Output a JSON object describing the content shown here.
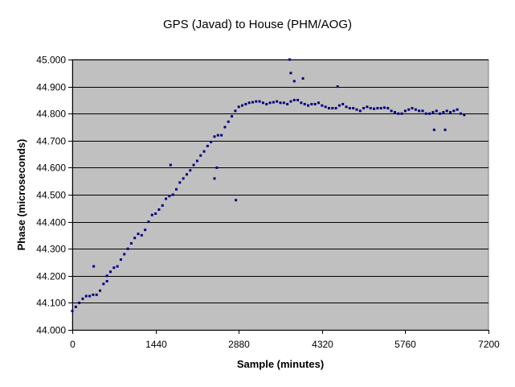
{
  "chart_data": {
    "type": "scatter",
    "title": "GPS (Javad) to House (PHM/AOG)",
    "xlabel": "Sample (minutes)",
    "ylabel": "Phase (microseconds)",
    "xlim": [
      0,
      7200
    ],
    "ylim": [
      44.0,
      45.0
    ],
    "x_ticks": [
      0,
      1440,
      2880,
      4320,
      5760,
      7200
    ],
    "x_tick_labels": [
      "0",
      "1440",
      "2880",
      "4320",
      "5760",
      "7200"
    ],
    "y_ticks": [
      44.0,
      44.1,
      44.2,
      44.3,
      44.4,
      44.5,
      44.6,
      44.7,
      44.8,
      44.9,
      45.0
    ],
    "y_tick_labels": [
      "44.000",
      "44.100",
      "44.200",
      "44.300",
      "44.400",
      "44.500",
      "44.600",
      "44.700",
      "44.800",
      "44.900",
      "45.000"
    ],
    "grid": "horizontal",
    "legend": "none",
    "plot_background": "#c0c0c0",
    "marker_color": "#000080",
    "series": [
      {
        "x": [
          0,
          60,
          120,
          180,
          240,
          300,
          360,
          420,
          480,
          540,
          600,
          660,
          720,
          780,
          840,
          900,
          960,
          1020,
          1080,
          1140,
          1200,
          1260,
          1320,
          1380,
          1440,
          1500,
          1560,
          1620,
          1680,
          1740,
          1800,
          1860,
          1920,
          1980,
          2040,
          2100,
          2160,
          2220,
          2280,
          2340,
          2400,
          2460,
          2520,
          2580,
          2640,
          2700,
          2760,
          2820,
          2880,
          2940,
          3000,
          3060,
          3120,
          3180,
          3240,
          3300,
          3360,
          3420,
          3480,
          3540,
          3600,
          3660,
          3720,
          3780,
          3840,
          3900,
          3960,
          4020,
          4080,
          4140,
          4200,
          4260,
          4320,
          4380,
          4440,
          4500,
          4560,
          4620,
          4680,
          4740,
          4800,
          4860,
          4920,
          4980,
          5040,
          5100,
          5160,
          5220,
          5280,
          5340,
          5400,
          5460,
          5520,
          5580,
          5640,
          5700,
          5760,
          5820,
          5880,
          5940,
          6000,
          6060,
          6120,
          6180,
          6240,
          6300,
          6360,
          6420,
          6480,
          6540,
          6600,
          6660,
          6720,
          6780,
          370,
          600,
          1700,
          2460,
          2500,
          2830,
          3760,
          3780,
          3840,
          3990,
          4590,
          6260,
          6450
        ],
        "y": [
          44.07,
          44.085,
          44.1,
          44.115,
          44.125,
          44.125,
          44.13,
          44.13,
          44.145,
          44.17,
          44.2,
          44.215,
          44.23,
          44.235,
          44.26,
          44.28,
          44.3,
          44.32,
          44.34,
          44.355,
          44.35,
          44.37,
          44.4,
          44.425,
          44.43,
          44.445,
          44.46,
          44.485,
          44.495,
          44.5,
          44.52,
          44.545,
          44.56,
          44.575,
          44.59,
          44.61,
          44.625,
          44.645,
          44.66,
          44.68,
          44.695,
          44.715,
          44.72,
          44.72,
          44.75,
          44.77,
          44.79,
          44.81,
          44.825,
          44.83,
          44.835,
          44.84,
          44.842,
          44.845,
          44.845,
          44.84,
          44.835,
          44.84,
          44.842,
          44.845,
          44.84,
          44.84,
          44.835,
          44.845,
          44.85,
          44.85,
          44.84,
          44.835,
          44.83,
          44.835,
          44.835,
          44.84,
          44.83,
          44.825,
          44.82,
          44.82,
          44.82,
          44.83,
          44.835,
          44.825,
          44.82,
          44.82,
          44.815,
          44.81,
          44.82,
          44.825,
          44.82,
          44.818,
          44.82,
          44.82,
          44.822,
          44.82,
          44.81,
          44.805,
          44.8,
          44.8,
          44.81,
          44.815,
          44.82,
          44.815,
          44.81,
          44.81,
          44.8,
          44.8,
          44.805,
          44.81,
          44.8,
          44.805,
          44.81,
          44.805,
          44.81,
          44.815,
          44.8,
          44.795,
          44.235,
          44.18,
          44.61,
          44.56,
          44.6,
          44.48,
          45.0,
          44.95,
          44.92,
          44.93,
          44.9,
          44.74,
          44.74
        ]
      }
    ]
  }
}
